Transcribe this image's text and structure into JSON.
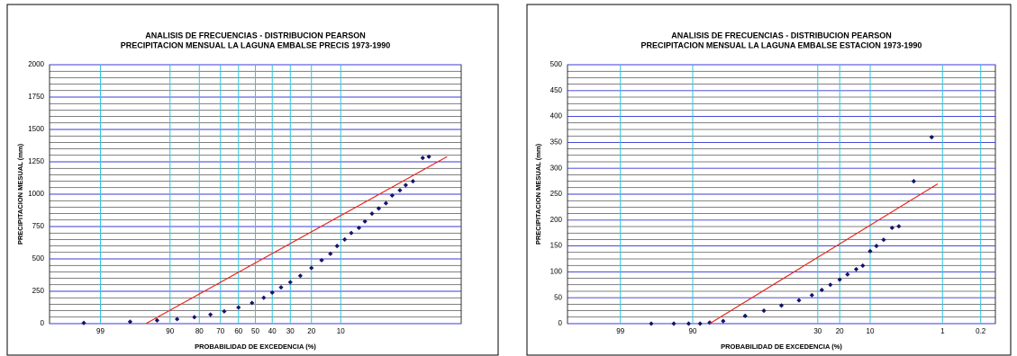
{
  "chart_data": [
    {
      "type": "scatter",
      "title": "ANALISIS DE FRECUENCIAS - DISTRIBUCION PEARSON",
      "subtitle": "PRECIPITACION MENSUAL LA LAGUNA EMBALSE PRECIS 1973-1990",
      "x_label": "PROBABILIDAD DE EXCEDENCIA (%)",
      "y_label": "PRECIPITACION MESUAL (mm)",
      "xscale": "probit",
      "xlim": [
        99.9,
        0.1
      ],
      "xticks": [
        99,
        90,
        80,
        70,
        60,
        50,
        40,
        30,
        20,
        10
      ],
      "ylim": [
        0,
        2000
      ],
      "yticks": [
        0,
        250,
        500,
        750,
        1000,
        1250,
        1500,
        1750,
        2000
      ],
      "grid": true,
      "series": [
        {
          "marker": "diamond",
          "color": "#14146e",
          "x": [
            99.5,
            97,
            93,
            88,
            82,
            75,
            68,
            60,
            52,
            45,
            40,
            35,
            30,
            25,
            20,
            16,
            13,
            11,
            9,
            7.5,
            6,
            5,
            4,
            3.2,
            2.5,
            2,
            1.5,
            1.2,
            0.9,
            0.6,
            0.46
          ],
          "values": [
            5,
            15,
            25,
            35,
            50,
            70,
            95,
            125,
            160,
            200,
            240,
            280,
            320,
            370,
            430,
            490,
            540,
            600,
            650,
            700,
            740,
            790,
            850,
            890,
            930,
            990,
            1030,
            1070,
            1100,
            1280,
            1290
          ]
        },
        {
          "marker": "line",
          "color": "#e8281e",
          "x": [
            95,
            0.2
          ],
          "values": [
            0,
            1290
          ]
        }
      ]
    },
    {
      "type": "scatter",
      "title": "ANALISIS DE FRECUENCIAS - DISTRIBUCION PEARSON",
      "subtitle": "PRECIPITACION MENSUAL LA LAGUNA EMBALSE ESTACION 1973-1990",
      "x_label": "PROBABILIDAD DE EXCEDENCIA (%)",
      "y_label": "PRECIPITACION MESUAL (mm)",
      "xscale": "probit",
      "xlim": [
        99.9,
        0.1
      ],
      "xticks": [
        99,
        90,
        30,
        20,
        10,
        1,
        0.2
      ],
      "ylim": [
        0,
        500
      ],
      "yticks": [
        0,
        50,
        100,
        150,
        200,
        250,
        300,
        350,
        400,
        450,
        500
      ],
      "grid": true,
      "series": [
        {
          "marker": "diamond",
          "color": "#14146e",
          "x": [
            97,
            94,
            91,
            88,
            85,
            80,
            70,
            60,
            50,
            40,
            33,
            28,
            24,
            20,
            17,
            14,
            12,
            10,
            8.5,
            7,
            5.5,
            4.5,
            2.8,
            1.5
          ],
          "values": [
            0,
            0,
            0,
            0,
            2,
            5,
            15,
            25,
            35,
            45,
            55,
            65,
            75,
            85,
            95,
            105,
            112,
            140,
            150,
            162,
            185,
            188,
            275,
            360
          ]
        },
        {
          "marker": "line",
          "color": "#e8281e",
          "x": [
            85,
            1.2
          ],
          "values": [
            0,
            270
          ]
        }
      ]
    }
  ]
}
